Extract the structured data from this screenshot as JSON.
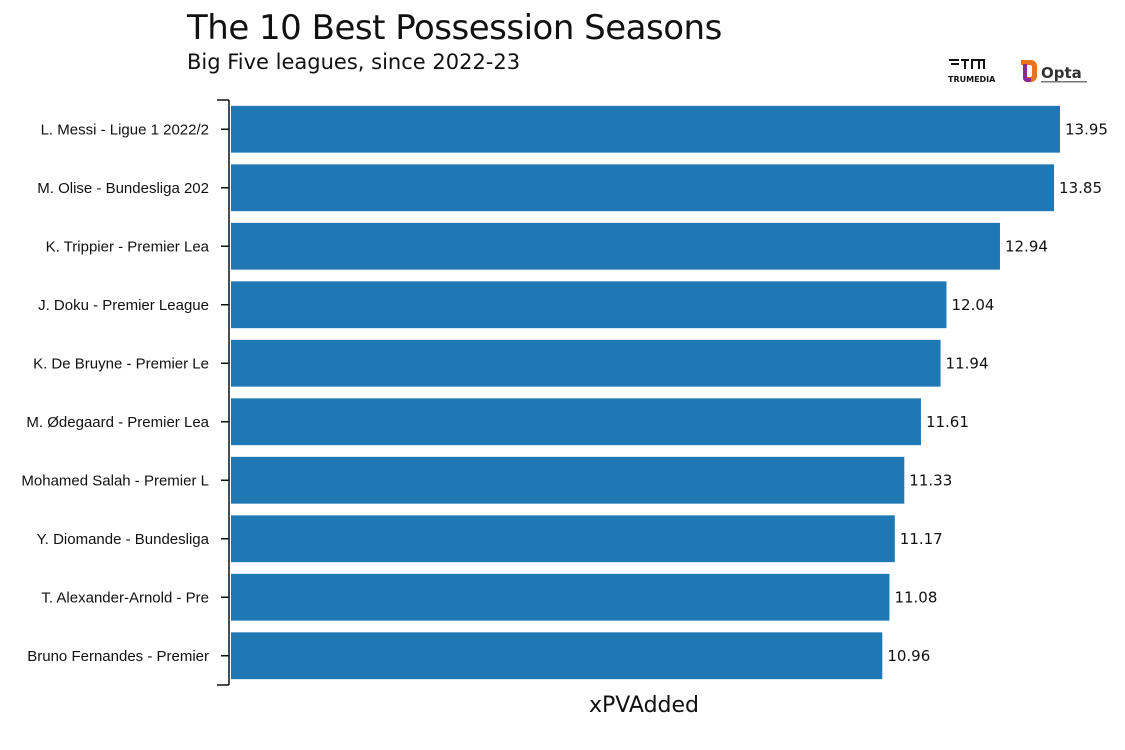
{
  "title": "The 10 Best Possession Seasons",
  "subtitle": "Big Five leagues, since 2022-23",
  "logos": {
    "trumedia": "TRUMEDIA",
    "opta": "Opta"
  },
  "colors": {
    "bar": "#1f77b4",
    "axis": "#111111",
    "text": "#111111"
  },
  "chart_data": {
    "type": "bar",
    "orientation": "horizontal",
    "categories": [
      "L. Messi - Ligue 1 2022/2",
      "M. Olise - Bundesliga 202",
      "K. Trippier - Premier Lea",
      "J. Doku - Premier League",
      "K. De Bruyne - Premier Le",
      "M. Ødegaard - Premier Lea",
      "Mohamed Salah - Premier L",
      "Y. Diomande - Bundesliga",
      "T. Alexander-Arnold - Pre",
      "Bruno Fernandes - Premier"
    ],
    "values": [
      13.95,
      13.85,
      12.94,
      12.04,
      11.94,
      11.61,
      11.33,
      11.17,
      11.08,
      10.96
    ],
    "value_labels": [
      "13.95",
      "13.85",
      "12.94",
      "12.04",
      "11.94",
      "11.61",
      "11.33",
      "11.17",
      "11.08",
      "10.96"
    ],
    "xlabel": "xPVAdded",
    "ylabel": "",
    "xlim": [
      0,
      13.95
    ],
    "grid": false,
    "legend": "none"
  }
}
